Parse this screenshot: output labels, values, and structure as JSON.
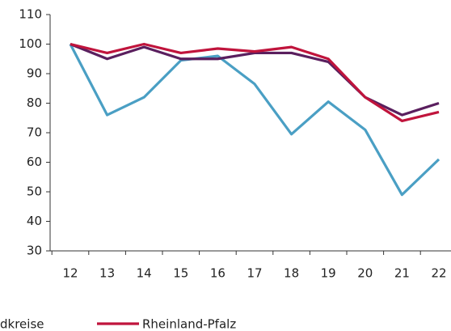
{
  "chart_data": {
    "type": "line",
    "categories": [
      "12",
      "13",
      "14",
      "15",
      "16",
      "17",
      "18",
      "19",
      "20",
      "21",
      "22"
    ],
    "series": [
      {
        "color": "#4a9fc4",
        "values": [
          100,
          76,
          82,
          94.5,
          96,
          86.5,
          69.5,
          80.5,
          71,
          49,
          61
        ]
      },
      {
        "name": "dkreise",
        "color": "#5a1f5e",
        "values": [
          100,
          95,
          99,
          95,
          95,
          97,
          97,
          94,
          82,
          76,
          80
        ]
      },
      {
        "name": "Rheinland-Pfalz",
        "color": "#c0143c",
        "values": [
          100,
          97,
          100,
          97,
          98.5,
          97.5,
          99,
          95,
          82,
          74,
          77
        ]
      }
    ],
    "ylim": [
      30,
      110
    ],
    "yticks": [
      30,
      40,
      50,
      60,
      70,
      80,
      90,
      100,
      110
    ],
    "grid": false
  }
}
